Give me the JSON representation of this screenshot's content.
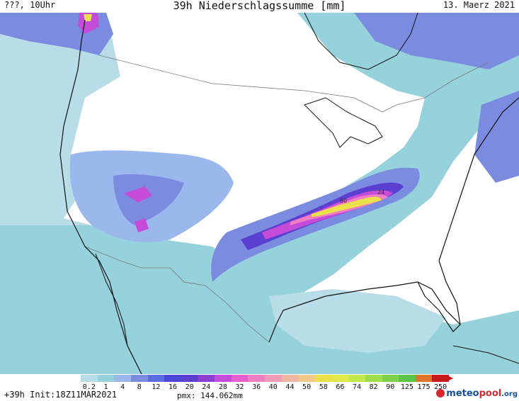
{
  "header": {
    "left": "???, 10Uhr",
    "title": "39h Niederschlagssumme [mm]",
    "date": "13. Maerz 2021"
  },
  "map": {
    "labels": {
      "max_a": "60",
      "max_b": "24"
    },
    "colors": {
      "background": "#ffffff",
      "light": "#96d2dc",
      "pale": "#b9dde8",
      "blue": "#7b8ce0",
      "purple": "#5a3fd0",
      "magenta": "#c54bd9",
      "pink": "#f27fc4",
      "yellow": "#e9e04a",
      "green": "#b6e34b"
    }
  },
  "legend": {
    "labels": [
      "0.2",
      "1",
      "4",
      "8",
      "12",
      "16",
      "20",
      "24",
      "28",
      "32",
      "36",
      "40",
      "44",
      "50",
      "58",
      "66",
      "74",
      "82",
      "90",
      "125",
      "175",
      "250"
    ],
    "colors": [
      "#b9dde8",
      "#96d2dc",
      "#9bb8ec",
      "#7b8ce0",
      "#5a6de0",
      "#4b45d8",
      "#5a3fd0",
      "#8c3fd0",
      "#c54bd9",
      "#e85fcf",
      "#f27fc4",
      "#f49bb8",
      "#f2b7a3",
      "#f0c88a",
      "#e9e04a",
      "#dfe94a",
      "#c3e64b",
      "#9fdd4a",
      "#7bd24a",
      "#5cc449",
      "#e0742b",
      "#c81a1a"
    ]
  },
  "footer": {
    "run": "+39h Init:18Z11MAR2021",
    "pmx": "pmx: 144.062mm",
    "brand_a": "meteo",
    "brand_b": "pool",
    "brand_c": ".org"
  }
}
